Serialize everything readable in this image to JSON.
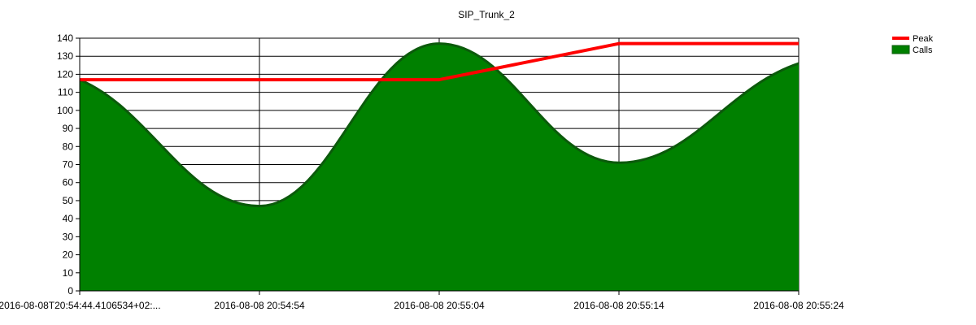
{
  "chart_data": {
    "type": "area",
    "title": "SIP_Trunk_2",
    "xlabel": "",
    "ylabel": "",
    "x": [
      "2016-08-08T20:54:44.4106534+02:...",
      "2016-08-08 20:54:54",
      "2016-08-08 20:55:04",
      "2016-08-08 20:55:14",
      "2016-08-08 20:55:24"
    ],
    "ylim": [
      0,
      140
    ],
    "yticks": [
      0,
      10,
      20,
      30,
      40,
      50,
      60,
      70,
      80,
      90,
      100,
      110,
      120,
      130,
      140
    ],
    "grid": true,
    "legend_position": "top-right",
    "series": [
      {
        "name": "Peak",
        "kind": "line",
        "color": "#ff0000",
        "values": [
          117,
          117,
          117,
          137,
          137
        ]
      },
      {
        "name": "Calls",
        "kind": "smooth-area",
        "color": "#008000",
        "values": [
          117,
          47,
          137,
          71,
          126
        ]
      }
    ]
  }
}
